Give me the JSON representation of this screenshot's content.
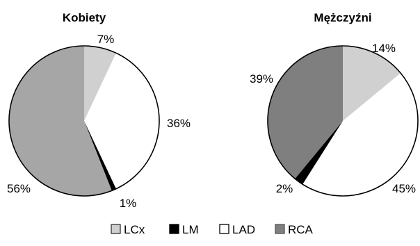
{
  "chart_data": [
    {
      "type": "pie",
      "title": "Kobiety",
      "slices": [
        {
          "label": "LCx",
          "value": 7,
          "display": "7%",
          "color": "#d0d0d0"
        },
        {
          "label": "LAD",
          "value": 36,
          "display": "36%",
          "color": "#ffffff"
        },
        {
          "label": "LM",
          "value": 1,
          "display": "1%",
          "color": "#000000"
        },
        {
          "label": "RCA",
          "value": 56,
          "display": "56%",
          "color": "#a6a6a6"
        }
      ]
    },
    {
      "type": "pie",
      "title": "Mężczyźni",
      "slices": [
        {
          "label": "LCx",
          "value": 14,
          "display": "14%",
          "color": "#d0d0d0"
        },
        {
          "label": "LAD",
          "value": 45,
          "display": "45%",
          "color": "#ffffff"
        },
        {
          "label": "LM",
          "value": 2,
          "display": "2%",
          "color": "#000000"
        },
        {
          "label": "RCA",
          "value": 39,
          "display": "39%",
          "color": "#7f7f7f"
        }
      ]
    }
  ],
  "legend": [
    {
      "label": "LCx",
      "color": "#d0d0d0",
      "outline": "#333333"
    },
    {
      "label": "LM",
      "color": "#000000",
      "outline": "#000000"
    },
    {
      "label": "LAD",
      "color": "#ffffff",
      "outline": "#000000"
    },
    {
      "label": "RCA",
      "color": "#7f7f7f",
      "outline": "#555555"
    }
  ]
}
